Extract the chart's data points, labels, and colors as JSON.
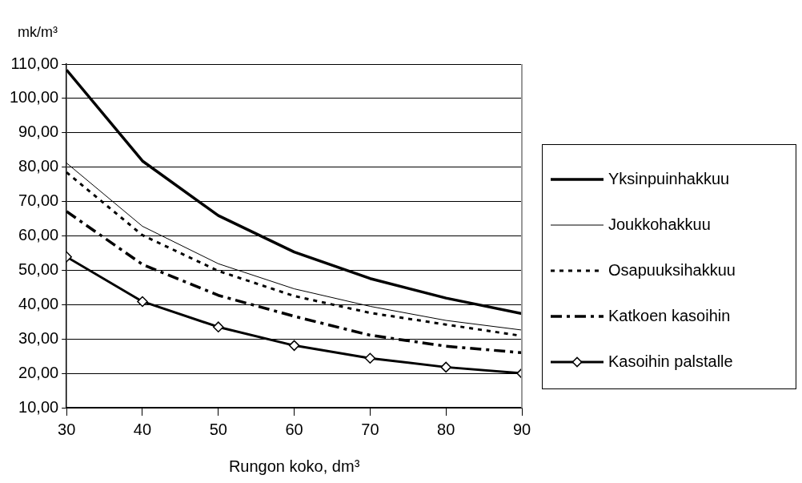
{
  "chart_data": {
    "type": "line",
    "xlabel": "Rungon koko, dm³",
    "ylabel": "mk/m³",
    "x": [
      30,
      40,
      50,
      60,
      70,
      80,
      90
    ],
    "xlim": [
      30,
      90
    ],
    "xticks": [
      30,
      40,
      50,
      60,
      70,
      80,
      90
    ],
    "ylim": [
      10,
      110
    ],
    "yticks": [
      {
        "value": 10,
        "label": "10,00"
      },
      {
        "value": 20,
        "label": "20,00"
      },
      {
        "value": 30,
        "label": "30,00"
      },
      {
        "value": 40,
        "label": "40,00"
      },
      {
        "value": 50,
        "label": "50,00"
      },
      {
        "value": 60,
        "label": "60,00"
      },
      {
        "value": 70,
        "label": "70,00"
      },
      {
        "value": 80,
        "label": "80,00"
      },
      {
        "value": 90,
        "label": "90,00"
      },
      {
        "value": 100,
        "label": "100,00"
      },
      {
        "value": 110,
        "label": "110,00"
      }
    ],
    "grid": "y",
    "legend": "right",
    "series": [
      {
        "name": "Yksinpuinhakkuu",
        "color": "#000000",
        "line_style": "solid",
        "marker": "none",
        "values": [
          108.3,
          81.8,
          65.9,
          55.3,
          47.6,
          41.9,
          37.4
        ]
      },
      {
        "name": "Joukkohakkuu",
        "color": "#000000",
        "line_style": "solid",
        "marker": "none",
        "values": [
          81.2,
          62.8,
          51.9,
          44.6,
          39.5,
          35.4,
          32.6
        ]
      },
      {
        "name": "Osapuuksihakkuu",
        "color": "#000000",
        "line_style": "dotted",
        "marker": "none",
        "values": [
          78.5,
          60.2,
          49.8,
          42.5,
          37.6,
          34.2,
          30.9
        ]
      },
      {
        "name": "Katkoen kasoihin",
        "color": "#000000",
        "line_style": "dashed",
        "marker": "none",
        "values": [
          67.1,
          51.7,
          42.7,
          36.6,
          31.1,
          27.9,
          26.0
        ]
      },
      {
        "name": "Kasoihin palstalle",
        "color": "#000000",
        "line_style": "solid",
        "marker": "diamond",
        "values": [
          53.9,
          40.9,
          33.5,
          28.1,
          24.4,
          21.8,
          20.0
        ]
      }
    ]
  }
}
